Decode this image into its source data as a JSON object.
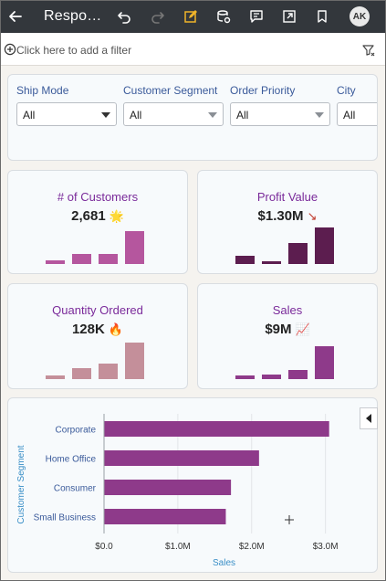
{
  "header": {
    "title": "Respo…",
    "avatar_initials": "AK"
  },
  "icons": {
    "back": "arrow-left-icon",
    "undo": "undo-icon",
    "redo": "redo-icon",
    "edit": "pencil-edit-icon",
    "data": "database-icon",
    "narrative": "comment-icon",
    "export": "export-icon",
    "bookmark": "bookmark-icon",
    "add_filter": "plus-circle-icon",
    "filter": "funnel-icon",
    "collapse": "caret-left-icon"
  },
  "filterbar": {
    "placeholder": "Click here to add a filter"
  },
  "dropdowns": [
    {
      "label": "Ship Mode",
      "value": "All"
    },
    {
      "label": "Customer Segment",
      "value": "All"
    },
    {
      "label": "Order Priority",
      "value": "All"
    },
    {
      "label": "City",
      "value": "All"
    }
  ],
  "kpis": [
    {
      "title": "# of Customers",
      "value": "2,681",
      "emoji": "🌟",
      "bars": [
        0.12,
        0.3,
        0.3,
        1.0
      ],
      "color": "#b5569e"
    },
    {
      "title": "Profit Value",
      "value": "$1.30M",
      "emoji": "↘",
      "bars": [
        0.22,
        0.08,
        0.58,
        1.0
      ],
      "color": "#5c1d4f"
    },
    {
      "title": "Quantity Ordered",
      "value": "128K",
      "emoji": "🔥",
      "bars": [
        0.1,
        0.3,
        0.43,
        1.0
      ],
      "color": "#c48f9a"
    },
    {
      "title": "Sales",
      "value": "$9M",
      "emoji": "📈",
      "bars": [
        0.1,
        0.13,
        0.27,
        1.0
      ],
      "color": "#8e3a8a"
    }
  ],
  "chart_data": {
    "type": "bar",
    "orientation": "horizontal",
    "categories": [
      "Corporate",
      "Home Office",
      "Consumer",
      "Small Business"
    ],
    "values": [
      3.05,
      2.1,
      1.72,
      1.65
    ],
    "unit": "M",
    "xlabel": "Sales",
    "ylabel": "Customer Segment",
    "xlim": [
      0,
      3.4
    ],
    "xticks": [
      0,
      1,
      2,
      3
    ],
    "xtick_labels": [
      "$0.0",
      "$1.0M",
      "$2.0M",
      "$3.0M"
    ],
    "grid": true,
    "color": "#8e3a8a"
  }
}
